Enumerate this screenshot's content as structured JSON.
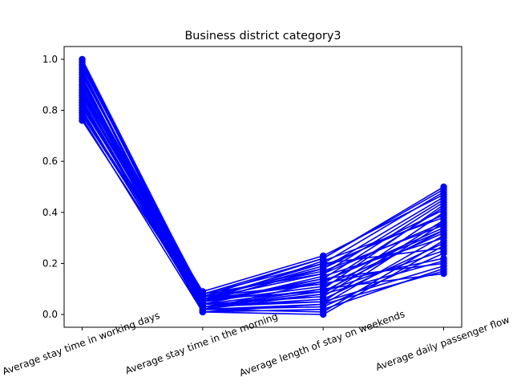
{
  "chart_data": {
    "type": "line",
    "title": "Business district category3",
    "categories": [
      "Average stay time in working days",
      "Average stay time in the morning",
      "Average length of stay on weekends",
      "Average daily passenger flow"
    ],
    "xlabel": "",
    "ylabel": "",
    "ylim": [
      -0.05,
      1.05
    ],
    "yticks": [
      0.0,
      0.2,
      0.4,
      0.6,
      0.8,
      1.0
    ],
    "ytick_labels": [
      "0.0",
      "0.2",
      "0.4",
      "0.6",
      "0.8",
      "1.0"
    ],
    "grid": false,
    "legend": "none",
    "line_color": "#0000ff",
    "marker": "circle",
    "series": [
      {
        "values": [
          1.0,
          0.07,
          0.22,
          0.5
        ]
      },
      {
        "values": [
          0.99,
          0.06,
          0.2,
          0.48
        ]
      },
      {
        "values": [
          0.98,
          0.05,
          0.18,
          0.46
        ]
      },
      {
        "values": [
          0.97,
          0.08,
          0.16,
          0.45
        ]
      },
      {
        "values": [
          0.96,
          0.04,
          0.14,
          0.44
        ]
      },
      {
        "values": [
          0.95,
          0.03,
          0.1,
          0.43
        ]
      },
      {
        "values": [
          0.94,
          0.07,
          0.12,
          0.42
        ]
      },
      {
        "values": [
          0.93,
          0.02,
          0.08,
          0.4
        ]
      },
      {
        "values": [
          0.92,
          0.06,
          0.19,
          0.39
        ]
      },
      {
        "values": [
          0.91,
          0.05,
          0.21,
          0.38
        ]
      },
      {
        "values": [
          0.9,
          0.04,
          0.07,
          0.37
        ]
      },
      {
        "values": [
          0.89,
          0.03,
          0.05,
          0.36
        ]
      },
      {
        "values": [
          0.88,
          0.07,
          0.17,
          0.35
        ]
      },
      {
        "values": [
          0.87,
          0.02,
          0.13,
          0.34
        ]
      },
      {
        "values": [
          0.86,
          0.06,
          0.09,
          0.33
        ]
      },
      {
        "values": [
          0.85,
          0.05,
          0.11,
          0.32
        ]
      },
      {
        "values": [
          0.84,
          0.01,
          0.04,
          0.31
        ]
      },
      {
        "values": [
          0.83,
          0.04,
          0.15,
          0.3
        ]
      },
      {
        "values": [
          0.82,
          0.03,
          0.06,
          0.28
        ]
      },
      {
        "values": [
          0.81,
          0.08,
          0.2,
          0.26
        ]
      },
      {
        "values": [
          0.8,
          0.02,
          0.03,
          0.24
        ]
      },
      {
        "values": [
          0.79,
          0.06,
          0.12,
          0.22
        ]
      },
      {
        "values": [
          0.78,
          0.05,
          0.14,
          0.2
        ]
      },
      {
        "values": [
          0.77,
          0.01,
          0.02,
          0.18
        ]
      },
      {
        "values": [
          0.76,
          0.04,
          0.1,
          0.16
        ]
      },
      {
        "values": [
          0.87,
          0.09,
          0.23,
          0.47
        ]
      },
      {
        "values": [
          0.83,
          0.02,
          0.01,
          0.29
        ]
      },
      {
        "values": [
          0.81,
          0.07,
          0.18,
          0.41
        ]
      },
      {
        "values": [
          0.79,
          0.03,
          0.08,
          0.21
        ]
      },
      {
        "values": [
          0.92,
          0.01,
          0.0,
          0.27
        ]
      },
      {
        "values": [
          0.9,
          0.08,
          0.22,
          0.49
        ]
      },
      {
        "values": [
          0.88,
          0.04,
          0.05,
          0.19
        ]
      },
      {
        "values": [
          0.86,
          0.06,
          0.16,
          0.36
        ]
      },
      {
        "values": [
          0.84,
          0.03,
          0.09,
          0.25
        ]
      },
      {
        "values": [
          0.82,
          0.05,
          0.13,
          0.33
        ]
      },
      {
        "values": [
          0.8,
          0.02,
          0.04,
          0.17
        ]
      }
    ]
  }
}
